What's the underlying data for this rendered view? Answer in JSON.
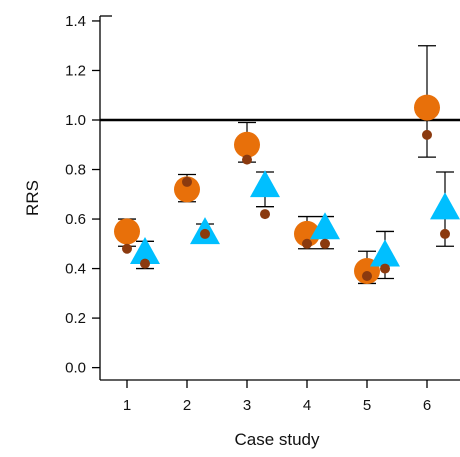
{
  "chart_data": {
    "type": "scatter",
    "xlabel": "Case study",
    "ylabel": "RRS",
    "x_ticks": [
      "1",
      "2",
      "3",
      "4",
      "5",
      "6"
    ],
    "y_ticks": [
      "0.0",
      "0.2",
      "0.4",
      "0.6",
      "0.8",
      "1.0",
      "1.2",
      "1.4"
    ],
    "ylim": [
      -0.05,
      1.42
    ],
    "xlim": [
      0.55,
      6.55
    ],
    "reference_line": 1.0,
    "grid": false,
    "legend": "none",
    "colors": {
      "orange": "#E8700A",
      "blue": "#00BFFF",
      "brown": "#8B3A0F",
      "axis": "#000000"
    },
    "error_bars": [
      {
        "x": 1.0,
        "low": 0.49,
        "high": 0.6
      },
      {
        "x": 2.0,
        "low": 0.67,
        "high": 0.78
      },
      {
        "x": 3.0,
        "low": 0.83,
        "high": 0.99
      },
      {
        "x": 4.0,
        "low": 0.48,
        "high": 0.61
      },
      {
        "x": 5.0,
        "low": 0.34,
        "high": 0.47
      },
      {
        "x": 6.0,
        "low": 0.85,
        "high": 1.3
      },
      {
        "x": 1.3,
        "low": 0.4,
        "high": 0.51
      },
      {
        "x": 2.3,
        "low": null,
        "high": 0.58
      },
      {
        "x": 3.3,
        "low": 0.65,
        "high": 0.79
      },
      {
        "x": 4.3,
        "low": 0.48,
        "high": 0.61
      },
      {
        "x": 5.3,
        "low": 0.36,
        "high": 0.55
      },
      {
        "x": 6.3,
        "low": 0.49,
        "high": 0.79
      }
    ],
    "series": [
      {
        "marker": "large-circle",
        "color": "orange",
        "points": [
          {
            "x": 1.0,
            "y": 0.55
          },
          {
            "x": 2.0,
            "y": 0.72
          },
          {
            "x": 3.0,
            "y": 0.9
          },
          {
            "x": 4.0,
            "y": 0.54
          },
          {
            "x": 5.0,
            "y": 0.39
          },
          {
            "x": 6.0,
            "y": 1.05
          }
        ]
      },
      {
        "marker": "triangle",
        "color": "blue",
        "points": [
          {
            "x": 1.3,
            "y": 0.46
          },
          {
            "x": 2.3,
            "y": 0.54
          },
          {
            "x": 3.3,
            "y": 0.73
          },
          {
            "x": 4.3,
            "y": 0.56
          },
          {
            "x": 5.3,
            "y": 0.45
          },
          {
            "x": 6.3,
            "y": 0.64
          }
        ]
      },
      {
        "marker": "small-circle",
        "color": "brown",
        "points": [
          {
            "x": 1.0,
            "y": 0.48
          },
          {
            "x": 2.0,
            "y": 0.75
          },
          {
            "x": 3.0,
            "y": 0.84
          },
          {
            "x": 4.0,
            "y": 0.5
          },
          {
            "x": 5.0,
            "y": 0.37
          },
          {
            "x": 6.0,
            "y": 0.94
          },
          {
            "x": 1.3,
            "y": 0.42
          },
          {
            "x": 2.3,
            "y": 0.54
          },
          {
            "x": 3.3,
            "y": 0.62
          },
          {
            "x": 4.3,
            "y": 0.5
          },
          {
            "x": 5.3,
            "y": 0.4
          },
          {
            "x": 6.3,
            "y": 0.54
          }
        ]
      }
    ]
  }
}
